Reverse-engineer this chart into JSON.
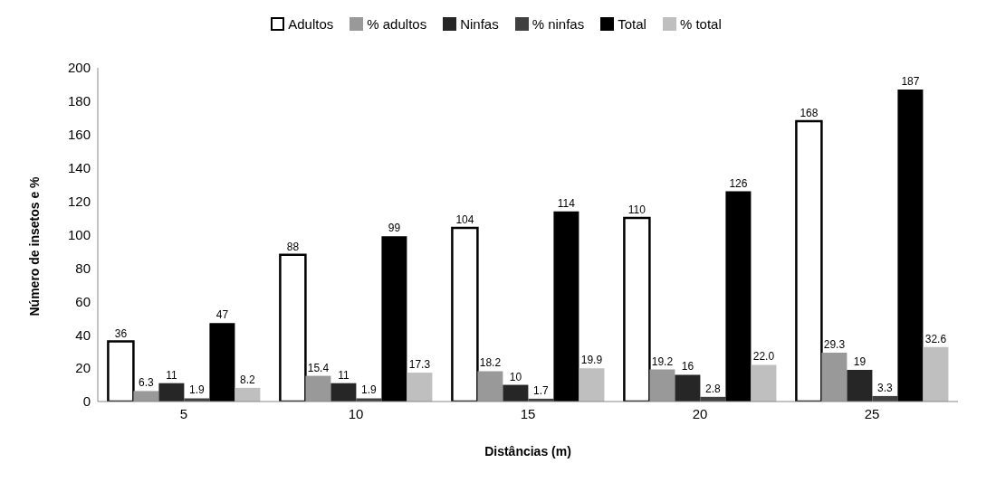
{
  "chart_data": {
    "type": "bar",
    "xlabel": "Distâncias (m)",
    "ylabel": "Número de insetos e %",
    "categories": [
      "5",
      "10",
      "15",
      "20",
      "25"
    ],
    "series": [
      {
        "name": "Adultos",
        "color": "#ffffff",
        "values": [
          36,
          88,
          104,
          110,
          168
        ]
      },
      {
        "name": "% adultos",
        "color": "#999999",
        "values": [
          6.3,
          15.4,
          18.2,
          19.2,
          29.3
        ]
      },
      {
        "name": "Ninfas",
        "color": "#262626",
        "values": [
          11,
          11,
          10,
          16,
          19
        ]
      },
      {
        "name": "% ninfas",
        "color": "#404040",
        "values": [
          1.9,
          1.9,
          1.7,
          2.8,
          3.3
        ]
      },
      {
        "name": "Total",
        "color": "#000000",
        "values": [
          47,
          99,
          114,
          126,
          187
        ]
      },
      {
        "name": "% total",
        "color": "#bfbfbf",
        "values": [
          8.2,
          17.3,
          19.9,
          22.0,
          32.6
        ],
        "value_labels": [
          "8.2",
          "17.3",
          "19.9",
          "22.0",
          "32.6"
        ]
      }
    ],
    "ylim": [
      0,
      200
    ],
    "yticks": [
      0,
      20,
      40,
      60,
      80,
      100,
      120,
      140,
      160,
      180,
      200
    ],
    "grid": false,
    "legend": "top",
    "data_labels": true
  }
}
